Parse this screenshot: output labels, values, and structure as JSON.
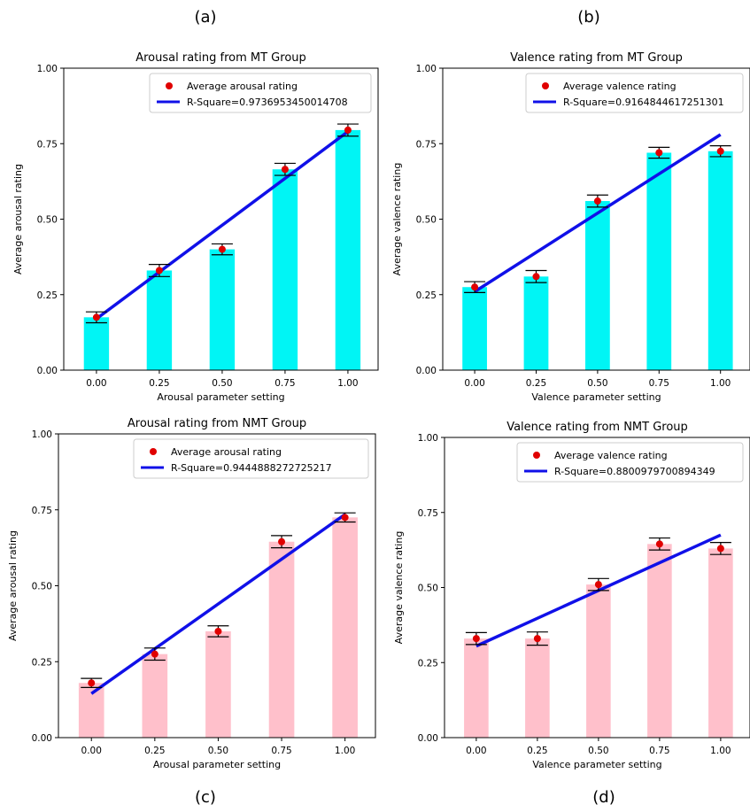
{
  "panel_labels": [
    "(a)",
    "(b)",
    "(c)",
    "(d)"
  ],
  "chart_data": [
    {
      "type": "bar",
      "title": "Arousal rating from MT Group",
      "xlabel": "Arousal parameter setting",
      "ylabel": "Average arousal rating",
      "categories": [
        "0.00",
        "0.25",
        "0.50",
        "0.75",
        "1.00"
      ],
      "x": [
        0,
        0.25,
        0.5,
        0.75,
        1.0
      ],
      "values": [
        0.175,
        0.33,
        0.4,
        0.665,
        0.795
      ],
      "error": [
        0.018,
        0.02,
        0.018,
        0.02,
        0.02
      ],
      "fit": {
        "label": "R-Square=0.9736953450014708",
        "start": 0.17,
        "end": 0.79
      },
      "points_label": "Average arousal rating",
      "ylim": [
        0,
        1
      ],
      "yticks": [
        "0.00",
        "0.25",
        "0.50",
        "0.75",
        "1.00"
      ],
      "bar_color": "#00f5f5"
    },
    {
      "type": "bar",
      "title": "Valence rating from MT Group",
      "xlabel": "Valence parameter setting",
      "ylabel": "Average valence rating",
      "categories": [
        "0.00",
        "0.25",
        "0.50",
        "0.75",
        "1.00"
      ],
      "x": [
        0,
        0.25,
        0.5,
        0.75,
        1.0
      ],
      "values": [
        0.275,
        0.31,
        0.56,
        0.72,
        0.725
      ],
      "error": [
        0.018,
        0.02,
        0.02,
        0.018,
        0.018
      ],
      "fit": {
        "label": "R-Square=0.9164844617251301",
        "start": 0.26,
        "end": 0.78
      },
      "points_label": "Average valence rating",
      "ylim": [
        0,
        1
      ],
      "yticks": [
        "0.00",
        "0.25",
        "0.50",
        "0.75",
        "1.00"
      ],
      "bar_color": "#00f5f5"
    },
    {
      "type": "bar",
      "title": "Arousal rating from NMT Group",
      "xlabel": "Arousal parameter setting",
      "ylabel": "Average arousal rating",
      "categories": [
        "0.00",
        "0.25",
        "0.50",
        "0.75",
        "1.00"
      ],
      "x": [
        0,
        0.25,
        0.5,
        0.75,
        1.0
      ],
      "values": [
        0.18,
        0.275,
        0.35,
        0.645,
        0.725
      ],
      "error": [
        0.015,
        0.02,
        0.018,
        0.02,
        0.015
      ],
      "fit": {
        "label": "R-Square=0.9444888272725217",
        "start": 0.145,
        "end": 0.735
      },
      "points_label": "Average arousal rating",
      "ylim": [
        0,
        1
      ],
      "yticks": [
        "0.00",
        "0.25",
        "0.50",
        "0.75",
        "1.00"
      ],
      "bar_color": "#ffc0cb"
    },
    {
      "type": "bar",
      "title": "Valence rating from NMT Group",
      "xlabel": "Valence parameter setting",
      "ylabel": "Average valence rating",
      "categories": [
        "0.00",
        "0.25",
        "0.50",
        "0.75",
        "1.00"
      ],
      "x": [
        0,
        0.25,
        0.5,
        0.75,
        1.0
      ],
      "values": [
        0.33,
        0.33,
        0.51,
        0.645,
        0.63
      ],
      "error": [
        0.02,
        0.022,
        0.02,
        0.02,
        0.02
      ],
      "fit": {
        "label": "R-Square=0.8800979700894349",
        "start": 0.305,
        "end": 0.675
      },
      "points_label": "Average valence rating",
      "ylim": [
        0,
        1
      ],
      "yticks": [
        "0.00",
        "0.25",
        "0.50",
        "0.75",
        "1.00"
      ],
      "bar_color": "#ffc0cb"
    }
  ],
  "colors": {
    "fit_line": "#1010e8",
    "points": "#e00000",
    "error_bar": "#000000"
  }
}
